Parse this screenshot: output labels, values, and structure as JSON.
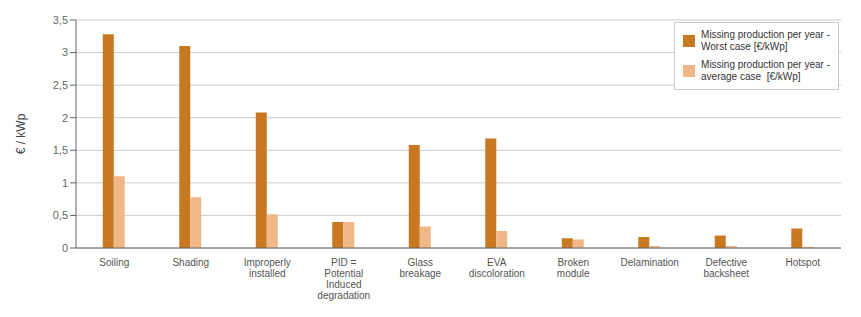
{
  "chart_data": {
    "type": "bar",
    "categories": [
      "Soiling",
      "Shading",
      "Improperly\ninstalled",
      "PID =\nPotential\nInduced\ndegradation",
      "Glass\nbreakage",
      "EVA\ndiscoloration",
      "Broken\nmodule",
      "Delamination",
      "Defective\nbacksheet",
      "Hotspot"
    ],
    "series": [
      {
        "name": "Missing production per year -\nWorst case [€/kWp]",
        "color": "#C87820",
        "values": [
          3.28,
          3.1,
          2.08,
          0.4,
          1.58,
          1.68,
          0.15,
          0.17,
          0.19,
          0.3
        ]
      },
      {
        "name": "Missing production per year -\naverage case  [€/kWp]",
        "color": "#F0B888",
        "values": [
          1.1,
          0.78,
          0.52,
          0.4,
          0.33,
          0.26,
          0.13,
          0.03,
          0.03,
          0.02
        ]
      }
    ],
    "ylabel": "€ / kWp",
    "ylim": [
      0,
      3.5
    ],
    "yticks": [
      0,
      {
        "value": 0.5,
        "label": "0,5"
      },
      1,
      {
        "value": 1.5,
        "label": "1,5"
      },
      2,
      {
        "value": 2.5,
        "label": "2,5"
      },
      3,
      {
        "value": 3.5,
        "label": "3,5"
      }
    ],
    "grid": true,
    "legend": "upper right"
  }
}
